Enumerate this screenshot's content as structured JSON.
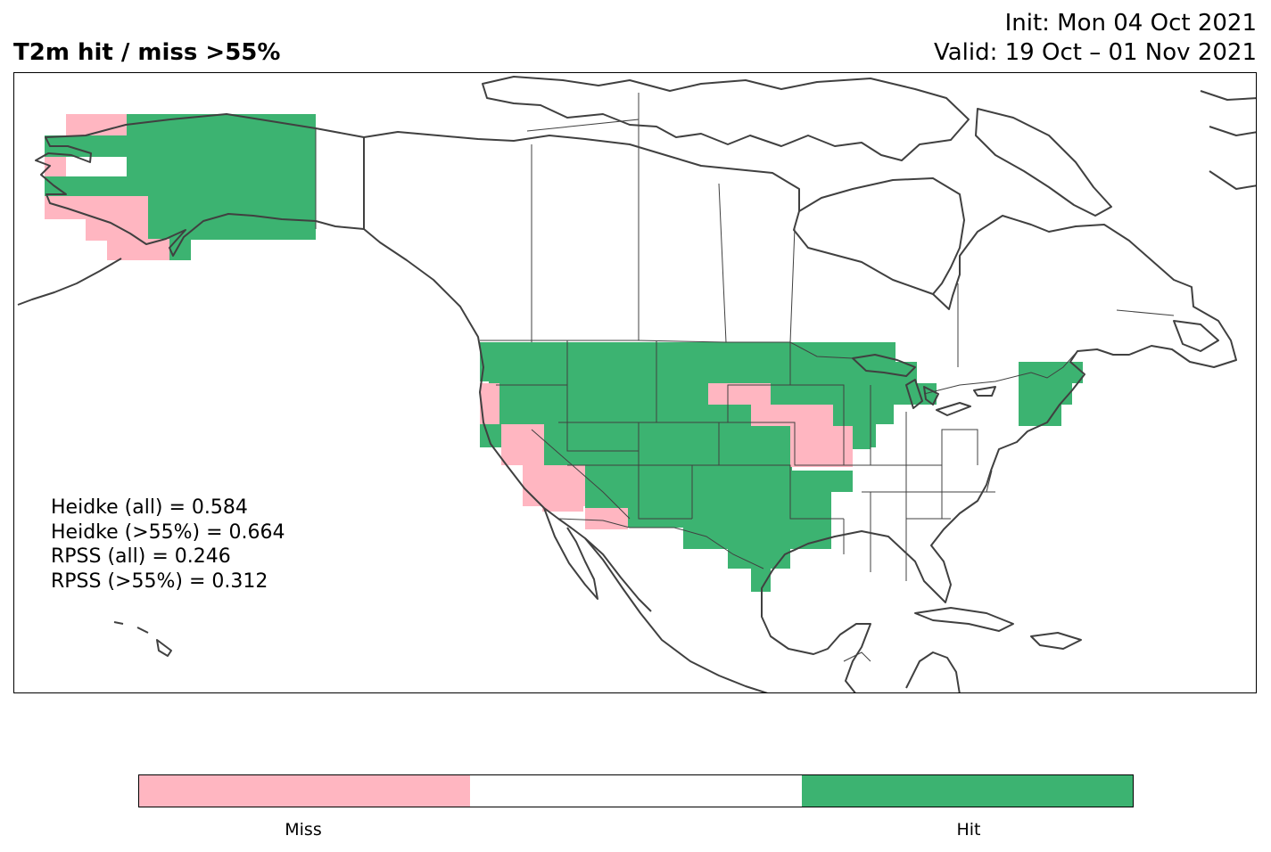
{
  "title": "T2m hit / miss  >55%",
  "init_label": "Init: Mon 04 Oct 2021",
  "valid_label": "Valid: 19 Oct – 01 Nov 2021",
  "stats": [
    "Heidke (all) = 0.584",
    "Heidke (>55%) = 0.664",
    "RPSS (all) = 0.246",
    "RPSS (>55%) = 0.312"
  ],
  "legend": {
    "miss_label": "Miss",
    "hit_label": "Hit",
    "miss_color": "#ffb6c1",
    "neutral_color": "#ffffff",
    "hit_color": "#3cb371"
  },
  "map": {
    "region": "North America",
    "categories": [
      "Miss",
      "Hit"
    ]
  }
}
